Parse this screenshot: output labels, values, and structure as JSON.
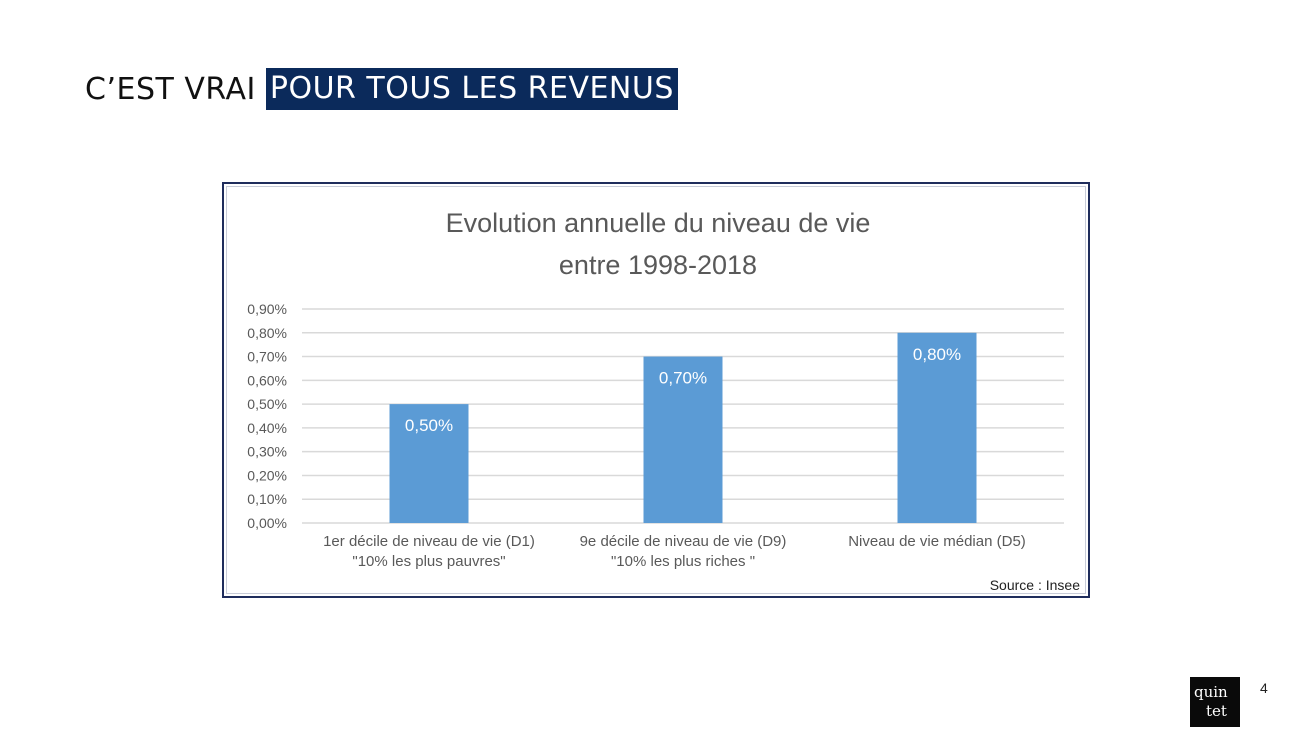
{
  "slide": {
    "title_plain": "C’EST VRAI",
    "title_highlight": "POUR TOUS LES REVENUS",
    "page_number": "4",
    "logo": {
      "line1": "quin",
      "line2": "tet"
    }
  },
  "colors": {
    "bar": "#5b9bd5",
    "highlight_bg": "#0b2a5b",
    "grid": "#d9d9d9",
    "frame": "#1f2d5c"
  },
  "chart_data": {
    "type": "bar",
    "title": "Evolution annuelle du niveau de vie",
    "subtitle": "entre 1998-2018",
    "categories": [
      [
        "1er décile de niveau de vie (D1)",
        "\"10% les plus pauvres\""
      ],
      [
        "9e décile de niveau de vie (D9)",
        "\"10% les plus riches \""
      ],
      [
        "Niveau de vie médian (D5)"
      ]
    ],
    "values": [
      0.5,
      0.7,
      0.8
    ],
    "data_labels": [
      "0,50%",
      "0,70%",
      "0,80%"
    ],
    "ylim": [
      0,
      0.9
    ],
    "yticks": [
      0,
      0.1,
      0.2,
      0.3,
      0.4,
      0.5,
      0.6,
      0.7,
      0.8,
      0.9
    ],
    "ytick_labels": [
      "0,00%",
      "0,10%",
      "0,20%",
      "0,30%",
      "0,40%",
      "0,50%",
      "0,60%",
      "0,70%",
      "0,80%",
      "0,90%"
    ],
    "xlabel": "",
    "ylabel": "",
    "grid": true,
    "legend": "none",
    "source": "Source : Insee"
  }
}
